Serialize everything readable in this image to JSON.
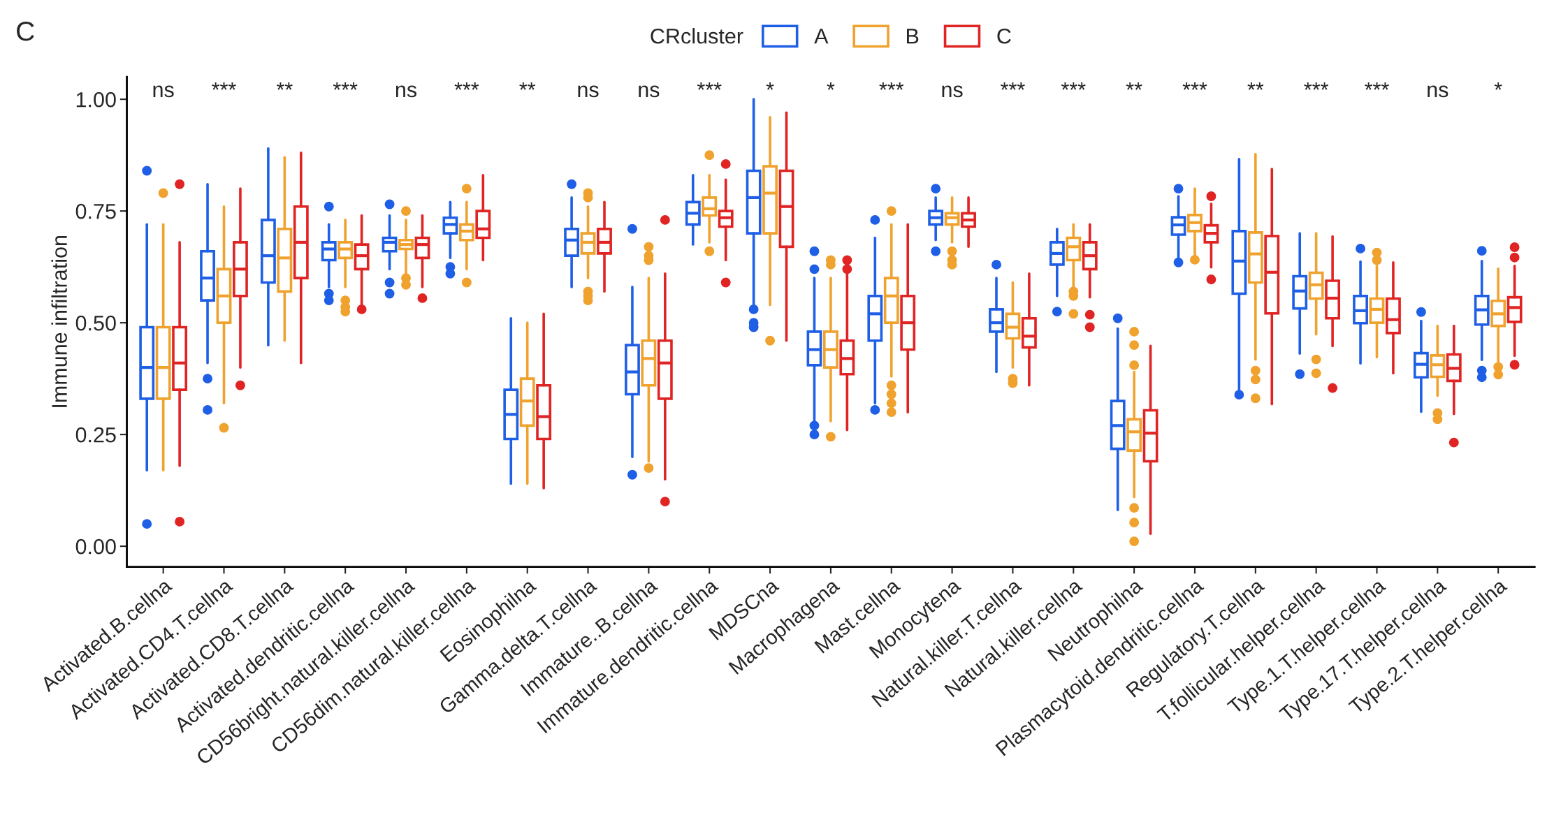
{
  "chart_data": {
    "type": "box",
    "title": "C",
    "ylabel": "Immune infiltration",
    "legend_title": "CRcluster",
    "legend": "top",
    "categories": [
      "Activated.B.cellna",
      "Activated.CD4.T.cellna",
      "Activated.CD8.T.cellna",
      "Activated.dendritic.cellna",
      "CD56bright.natural.killer.cellna",
      "CD56dim.natural.killer.cellna",
      "Eosinophilna",
      "Gamma.delta.T.cellna",
      "Immature..B.cellna",
      "Immature.dendritic.cellna",
      "MDSCna",
      "Macrophagena",
      "Mast.cellna",
      "Monocytena",
      "Natural.killer.T.cellna",
      "Natural.killer.cellna",
      "Neutrophilna",
      "Plasmacytoid.dendritic.cellna",
      "Regulatory.T.cellna",
      "T.follicular.helper.cellna",
      "Type.1.T.helper.cellna",
      "Type.17.T.helper.cellna",
      "Type.2.T.helper.cellna"
    ],
    "ylim": [
      -0.046,
      1.05
    ],
    "yticks": [
      {
        "value": 0,
        "label": "0.00"
      },
      {
        "value": 0.25,
        "label": "0.25"
      },
      {
        "value": 0.5,
        "label": "0.50"
      },
      {
        "value": 0.75,
        "label": "0.75"
      },
      {
        "value": 1,
        "label": "1.00"
      }
    ],
    "annotations": [
      "ns",
      "***",
      "**",
      "***",
      "ns",
      "***",
      "**",
      "ns",
      "ns",
      "***",
      "*",
      "*",
      "***",
      "ns",
      "***",
      "***",
      "**",
      "***",
      "**",
      "***",
      "***",
      "ns",
      "*"
    ],
    "series": [
      {
        "name": "A",
        "color": "#1f5fe6",
        "boxes": [
          {
            "low": 0.17,
            "q1": 0.33,
            "median": 0.4,
            "q3": 0.49,
            "high": 0.72,
            "outliers": [
              0.84,
              0.05
            ]
          },
          {
            "low": 0.41,
            "q1": 0.55,
            "median": 0.6,
            "q3": 0.66,
            "high": 0.81,
            "outliers": [
              0.375,
              0.305
            ]
          },
          {
            "low": 0.45,
            "q1": 0.59,
            "median": 0.65,
            "q3": 0.73,
            "high": 0.89
          },
          {
            "low": 0.58,
            "q1": 0.64,
            "median": 0.665,
            "q3": 0.68,
            "high": 0.72,
            "outliers": [
              0.76,
              0.565,
              0.55
            ]
          },
          {
            "low": 0.62,
            "q1": 0.66,
            "median": 0.68,
            "q3": 0.69,
            "high": 0.74,
            "outliers": [
              0.765,
              0.59,
              0.565
            ]
          },
          {
            "low": 0.645,
            "q1": 0.7,
            "median": 0.72,
            "q3": 0.735,
            "high": 0.77,
            "outliers": [
              0.625,
              0.61
            ]
          },
          {
            "low": 0.14,
            "q1": 0.24,
            "median": 0.295,
            "q3": 0.35,
            "high": 0.51
          },
          {
            "low": 0.58,
            "q1": 0.65,
            "median": 0.685,
            "q3": 0.71,
            "high": 0.78,
            "outliers": [
              0.81
            ]
          },
          {
            "low": 0.2,
            "q1": 0.34,
            "median": 0.39,
            "q3": 0.45,
            "high": 0.58,
            "outliers": [
              0.71,
              0.16
            ]
          },
          {
            "low": 0.675,
            "q1": 0.72,
            "median": 0.745,
            "q3": 0.77,
            "high": 0.83
          },
          {
            "low": 0.54,
            "q1": 0.7,
            "median": 0.78,
            "q3": 0.84,
            "high": 1.0,
            "outliers": [
              0.53,
              0.5,
              0.49
            ]
          },
          {
            "low": 0.28,
            "q1": 0.405,
            "median": 0.44,
            "q3": 0.48,
            "high": 0.6,
            "outliers": [
              0.66,
              0.62,
              0.27,
              0.25
            ]
          },
          {
            "low": 0.32,
            "q1": 0.46,
            "median": 0.52,
            "q3": 0.56,
            "high": 0.69,
            "outliers": [
              0.73,
              0.305
            ]
          },
          {
            "low": 0.685,
            "q1": 0.72,
            "median": 0.735,
            "q3": 0.75,
            "high": 0.78,
            "outliers": [
              0.8,
              0.66
            ]
          },
          {
            "low": 0.39,
            "q1": 0.48,
            "median": 0.5,
            "q3": 0.53,
            "high": 0.6,
            "outliers": [
              0.63
            ]
          },
          {
            "low": 0.56,
            "q1": 0.63,
            "median": 0.655,
            "q3": 0.68,
            "high": 0.71,
            "outliers": [
              0.525
            ]
          },
          {
            "low": 0.081,
            "q1": 0.218,
            "median": 0.27,
            "q3": 0.325,
            "high": 0.487,
            "outliers": [
              0.51
            ]
          },
          {
            "low": 0.646,
            "q1": 0.697,
            "median": 0.719,
            "q3": 0.736,
            "high": 0.783,
            "outliers": [
              0.8,
              0.635
            ]
          },
          {
            "low": 0.351,
            "q1": 0.565,
            "median": 0.638,
            "q3": 0.705,
            "high": 0.866,
            "outliers": [
              0.339
            ]
          },
          {
            "low": 0.431,
            "q1": 0.532,
            "median": 0.571,
            "q3": 0.604,
            "high": 0.7,
            "outliers": [
              0.385
            ]
          },
          {
            "low": 0.409,
            "q1": 0.499,
            "median": 0.527,
            "q3": 0.56,
            "high": 0.637,
            "outliers": [
              0.666
            ]
          },
          {
            "low": 0.301,
            "q1": 0.378,
            "median": 0.407,
            "q3": 0.432,
            "high": 0.504,
            "outliers": [
              0.524
            ]
          },
          {
            "low": 0.417,
            "q1": 0.496,
            "median": 0.529,
            "q3": 0.56,
            "high": 0.638,
            "outliers": [
              0.661,
              0.393,
              0.378
            ]
          }
        ]
      },
      {
        "name": "B",
        "color": "#f0a22e",
        "boxes": [
          {
            "low": 0.17,
            "q1": 0.33,
            "median": 0.4,
            "q3": 0.49,
            "high": 0.72,
            "outliers": [
              0.79
            ]
          },
          {
            "low": 0.32,
            "q1": 0.5,
            "median": 0.56,
            "q3": 0.62,
            "high": 0.76,
            "outliers": [
              0.265
            ]
          },
          {
            "low": 0.46,
            "q1": 0.57,
            "median": 0.645,
            "q3": 0.71,
            "high": 0.87
          },
          {
            "low": 0.58,
            "q1": 0.645,
            "median": 0.665,
            "q3": 0.68,
            "high": 0.73,
            "outliers": [
              0.55,
              0.535,
              0.525
            ]
          },
          {
            "low": 0.61,
            "q1": 0.665,
            "median": 0.675,
            "q3": 0.685,
            "high": 0.73,
            "outliers": [
              0.75,
              0.6,
              0.585
            ]
          },
          {
            "low": 0.62,
            "q1": 0.685,
            "median": 0.705,
            "q3": 0.72,
            "high": 0.77,
            "outliers": [
              0.8,
              0.59
            ]
          },
          {
            "low": 0.14,
            "q1": 0.27,
            "median": 0.325,
            "q3": 0.375,
            "high": 0.5
          },
          {
            "low": 0.6,
            "q1": 0.655,
            "median": 0.68,
            "q3": 0.7,
            "high": 0.76,
            "outliers": [
              0.79,
              0.78,
              0.57,
              0.56,
              0.55
            ]
          },
          {
            "low": 0.19,
            "q1": 0.36,
            "median": 0.42,
            "q3": 0.46,
            "high": 0.6,
            "outliers": [
              0.67,
              0.65,
              0.64,
              0.175
            ]
          },
          {
            "low": 0.68,
            "q1": 0.74,
            "median": 0.755,
            "q3": 0.78,
            "high": 0.83,
            "outliers": [
              0.875,
              0.66
            ]
          },
          {
            "low": 0.54,
            "q1": 0.7,
            "median": 0.79,
            "q3": 0.85,
            "high": 0.96,
            "outliers": [
              0.46
            ]
          },
          {
            "low": 0.28,
            "q1": 0.4,
            "median": 0.44,
            "q3": 0.48,
            "high": 0.6,
            "outliers": [
              0.64,
              0.63,
              0.245
            ]
          },
          {
            "low": 0.38,
            "q1": 0.5,
            "median": 0.56,
            "q3": 0.6,
            "high": 0.72,
            "outliers": [
              0.75,
              0.36,
              0.34,
              0.32,
              0.3
            ]
          },
          {
            "low": 0.68,
            "q1": 0.72,
            "median": 0.735,
            "q3": 0.745,
            "high": 0.78,
            "outliers": [
              0.66,
              0.64,
              0.63
            ]
          },
          {
            "low": 0.4,
            "q1": 0.465,
            "median": 0.49,
            "q3": 0.52,
            "high": 0.59,
            "outliers": [
              0.375,
              0.365
            ]
          },
          {
            "low": 0.58,
            "q1": 0.64,
            "median": 0.67,
            "q3": 0.69,
            "high": 0.72,
            "outliers": [
              0.57,
              0.56,
              0.52
            ]
          },
          {
            "low": 0.11,
            "q1": 0.214,
            "median": 0.256,
            "q3": 0.284,
            "high": 0.39,
            "outliers": [
              0.48,
              0.45,
              0.405,
              0.086,
              0.053,
              0.011
            ]
          },
          {
            "low": 0.652,
            "q1": 0.705,
            "median": 0.724,
            "q3": 0.741,
            "high": 0.8,
            "outliers": [
              0.641
            ]
          },
          {
            "low": 0.418,
            "q1": 0.59,
            "median": 0.654,
            "q3": 0.702,
            "high": 0.877,
            "outliers": [
              0.393,
              0.373,
              0.331
            ]
          },
          {
            "low": 0.474,
            "q1": 0.554,
            "median": 0.585,
            "q3": 0.612,
            "high": 0.7,
            "outliers": [
              0.418,
              0.387
            ]
          },
          {
            "low": 0.423,
            "q1": 0.5,
            "median": 0.53,
            "q3": 0.554,
            "high": 0.627,
            "outliers": [
              0.657,
              0.64
            ]
          },
          {
            "low": 0.337,
            "q1": 0.379,
            "median": 0.406,
            "q3": 0.427,
            "high": 0.493,
            "outliers": [
              0.298,
              0.284
            ]
          },
          {
            "low": 0.406,
            "q1": 0.493,
            "median": 0.52,
            "q3": 0.549,
            "high": 0.621,
            "outliers": [
              0.401,
              0.384
            ]
          }
        ]
      },
      {
        "name": "C",
        "color": "#e02424",
        "boxes": [
          {
            "low": 0.18,
            "q1": 0.35,
            "median": 0.41,
            "q3": 0.49,
            "high": 0.68,
            "outliers": [
              0.81,
              0.055
            ]
          },
          {
            "low": 0.4,
            "q1": 0.56,
            "median": 0.62,
            "q3": 0.68,
            "high": 0.8,
            "outliers": [
              0.36
            ]
          },
          {
            "low": 0.41,
            "q1": 0.6,
            "median": 0.68,
            "q3": 0.76,
            "high": 0.88
          },
          {
            "low": 0.54,
            "q1": 0.62,
            "median": 0.65,
            "q3": 0.675,
            "high": 0.74,
            "outliers": [
              0.53
            ]
          },
          {
            "low": 0.58,
            "q1": 0.645,
            "median": 0.675,
            "q3": 0.69,
            "high": 0.74,
            "outliers": [
              0.555
            ]
          },
          {
            "low": 0.64,
            "q1": 0.69,
            "median": 0.71,
            "q3": 0.75,
            "high": 0.83
          },
          {
            "low": 0.13,
            "q1": 0.24,
            "median": 0.29,
            "q3": 0.36,
            "high": 0.52
          },
          {
            "low": 0.57,
            "q1": 0.655,
            "median": 0.68,
            "q3": 0.71,
            "high": 0.77
          },
          {
            "low": 0.15,
            "q1": 0.33,
            "median": 0.41,
            "q3": 0.46,
            "high": 0.61,
            "outliers": [
              0.73,
              0.1
            ]
          },
          {
            "low": 0.64,
            "q1": 0.715,
            "median": 0.735,
            "q3": 0.75,
            "high": 0.82,
            "outliers": [
              0.855,
              0.59
            ]
          },
          {
            "low": 0.46,
            "q1": 0.67,
            "median": 0.76,
            "q3": 0.84,
            "high": 0.97
          },
          {
            "low": 0.26,
            "q1": 0.385,
            "median": 0.42,
            "q3": 0.46,
            "high": 0.61,
            "outliers": [
              0.64,
              0.62
            ]
          },
          {
            "low": 0.3,
            "q1": 0.44,
            "median": 0.5,
            "q3": 0.56,
            "high": 0.72
          },
          {
            "low": 0.67,
            "q1": 0.715,
            "median": 0.73,
            "q3": 0.745,
            "high": 0.78
          },
          {
            "low": 0.36,
            "q1": 0.445,
            "median": 0.47,
            "q3": 0.51,
            "high": 0.61
          },
          {
            "low": 0.557,
            "q1": 0.62,
            "median": 0.65,
            "q3": 0.68,
            "high": 0.72,
            "outliers": [
              0.518,
              0.49
            ]
          },
          {
            "low": 0.028,
            "q1": 0.19,
            "median": 0.253,
            "q3": 0.304,
            "high": 0.448
          },
          {
            "low": 0.624,
            "q1": 0.68,
            "median": 0.7,
            "q3": 0.718,
            "high": 0.766,
            "outliers": [
              0.783,
              0.597
            ]
          },
          {
            "low": 0.318,
            "q1": 0.521,
            "median": 0.613,
            "q3": 0.694,
            "high": 0.844
          },
          {
            "low": 0.448,
            "q1": 0.51,
            "median": 0.555,
            "q3": 0.594,
            "high": 0.693,
            "outliers": [
              0.354
            ]
          },
          {
            "low": 0.387,
            "q1": 0.477,
            "median": 0.507,
            "q3": 0.554,
            "high": 0.635
          },
          {
            "low": 0.296,
            "q1": 0.37,
            "median": 0.398,
            "q3": 0.429,
            "high": 0.493,
            "outliers": [
              0.232
            ]
          },
          {
            "low": 0.426,
            "q1": 0.502,
            "median": 0.534,
            "q3": 0.557,
            "high": 0.627,
            "outliers": [
              0.669,
              0.646,
              0.406
            ]
          }
        ]
      }
    ]
  }
}
